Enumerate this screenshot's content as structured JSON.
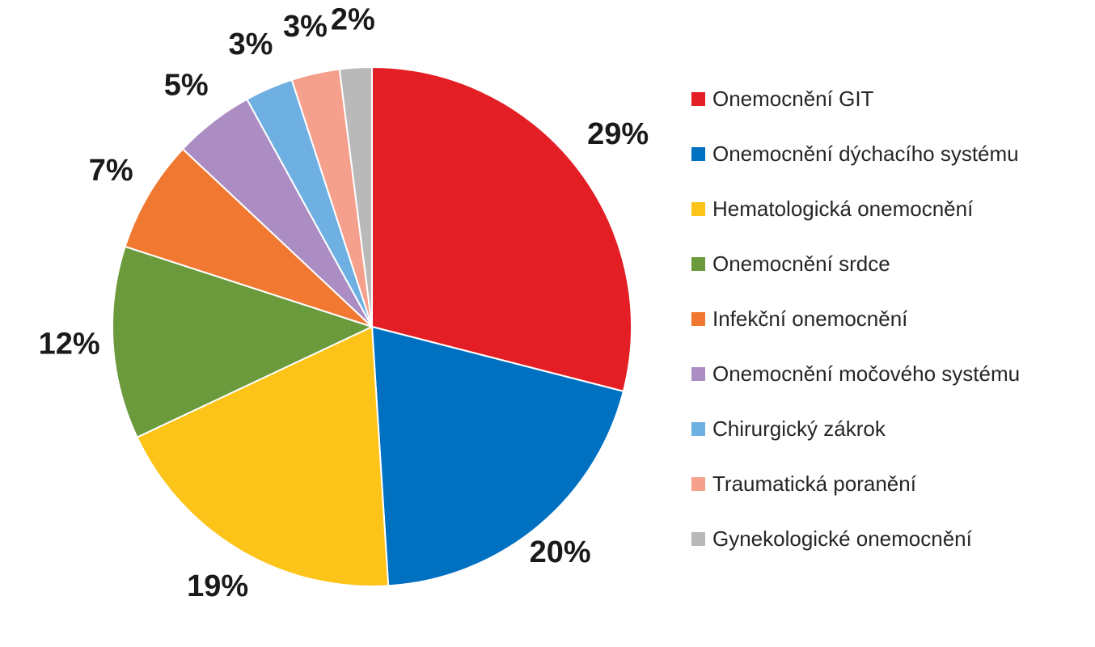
{
  "chart_data": {
    "type": "pie",
    "title": "",
    "start_angle_deg": 0,
    "direction": "clockwise",
    "legend_position": "right",
    "series": [
      {
        "slices": [
          {
            "label": "Onemocnění GIT",
            "value": 29,
            "value_label": "29%",
            "color": "#e31e24"
          },
          {
            "label": "Onemocnění dýchacího systému",
            "value": 20,
            "value_label": "20%",
            "color": "#0070c0"
          },
          {
            "label": "Hematologická onemocnění",
            "value": 19,
            "value_label": "19%",
            "color": "#fcc318"
          },
          {
            "label": "Onemocnění srdce",
            "value": 12,
            "value_label": "12%",
            "color": "#6a9a3b"
          },
          {
            "label": "Infekční onemocnění",
            "value": 7,
            "value_label": "7%",
            "color": "#f07830"
          },
          {
            "label": "Onemocnění močového systému",
            "value": 5,
            "value_label": "5%",
            "color": "#ab8dc3"
          },
          {
            "label": "Chirurgický zákrok",
            "value": 3,
            "value_label": "3%",
            "color": "#6fb0e2"
          },
          {
            "label": "Traumatická poranění",
            "value": 3,
            "value_label": "3%",
            "color": "#f5a08d"
          },
          {
            "label": "Gynekologické onemocnění",
            "value": 2,
            "value_label": "2%",
            "color": "#b9b9b9"
          }
        ]
      }
    ]
  }
}
